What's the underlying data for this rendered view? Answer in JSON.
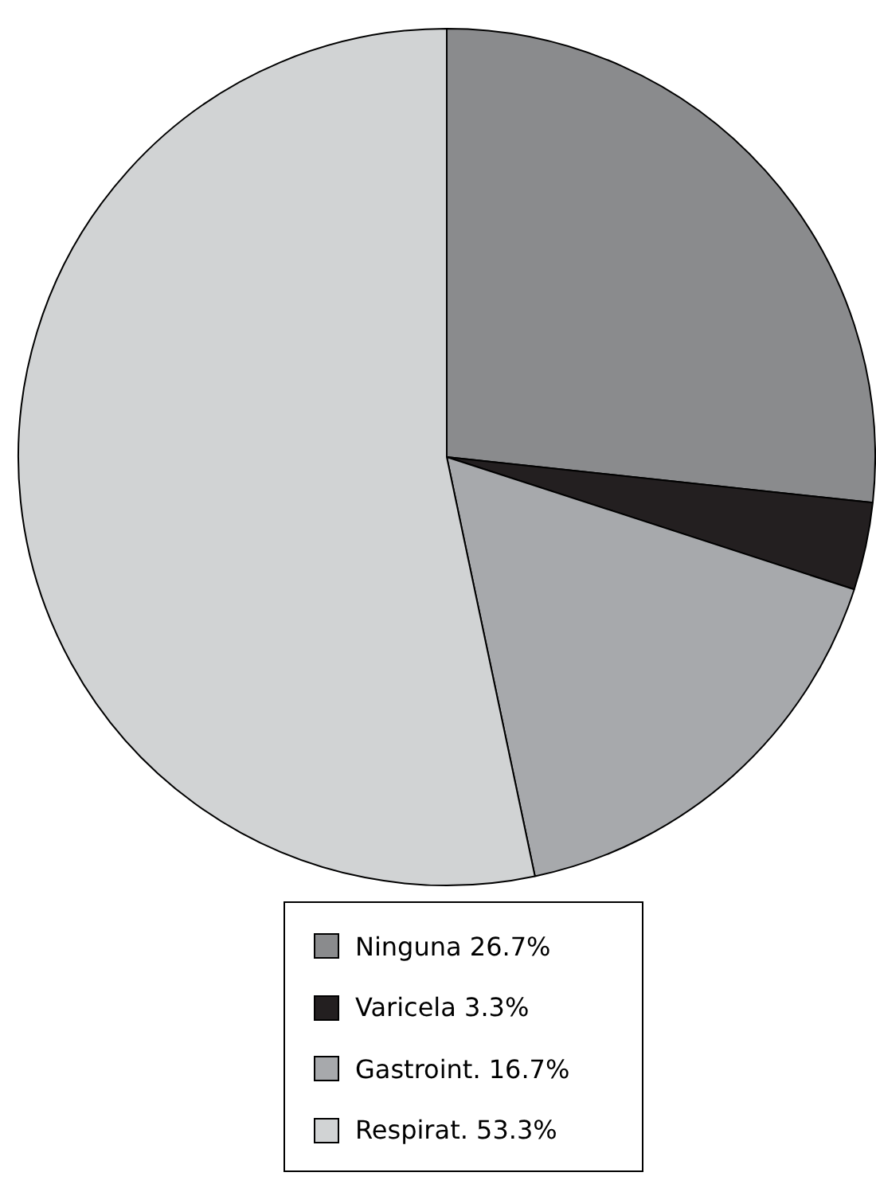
{
  "chart_data": {
    "type": "pie",
    "categories": [
      "Ninguna 26.7%",
      "Varicela 3.3%",
      "Gastroint. 16.7%",
      "Respirat. 53.3%"
    ],
    "values": [
      26.7,
      3.3,
      16.7,
      53.3
    ],
    "colors": [
      "#8a8b8d",
      "#231f20",
      "#a7a9ac",
      "#d1d3d4"
    ],
    "legend": "bottom"
  }
}
